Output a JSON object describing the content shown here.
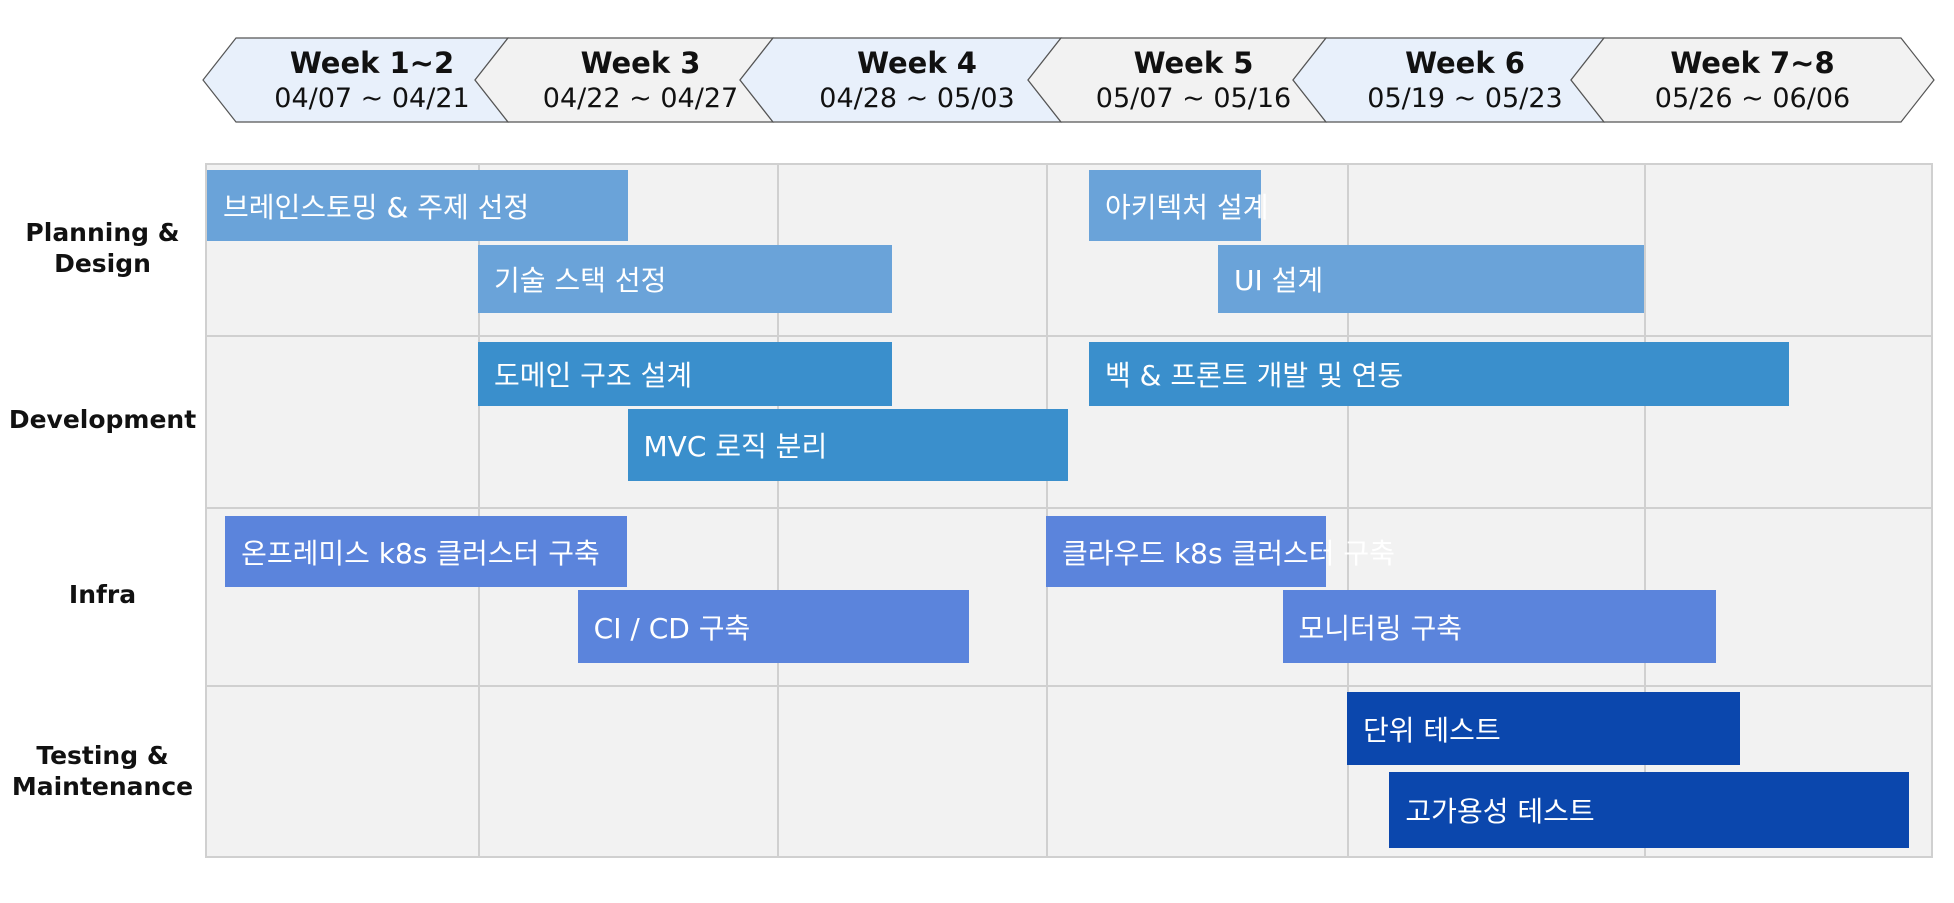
{
  "weeks": [
    {
      "name": "Week 1~2",
      "dates": "04/07 ~ 04/21"
    },
    {
      "name": "Week 3",
      "dates": "04/22 ~ 04/27"
    },
    {
      "name": "Week 4",
      "dates": "04/28 ~ 05/03"
    },
    {
      "name": "Week 5",
      "dates": "05/07 ~ 05/16"
    },
    {
      "name": "Week 6",
      "dates": "05/19 ~ 05/23"
    },
    {
      "name": "Week 7~8",
      "dates": "05/26 ~ 06/06"
    }
  ],
  "rows": [
    {
      "label": "Planning &\nDesign",
      "label_lines": [
        "Planning &",
        "Design"
      ],
      "color": "#6aa3d9"
    },
    {
      "label_lines": [
        "Development"
      ],
      "color": "#3a8fcc"
    },
    {
      "label_lines": [
        "Infra"
      ],
      "color": "#5b84dc"
    },
    {
      "label_lines": [
        "Testing &",
        "Maintenance"
      ],
      "color": "#0b47ad"
    }
  ],
  "tasks": [
    {
      "row": 0,
      "label": "브레인스토밍 & 주제 선정",
      "start": "04/07",
      "end": "04/25"
    },
    {
      "row": 0,
      "label": "기술 스택 선정",
      "start": "04/22",
      "end": "05/01"
    },
    {
      "row": 0,
      "label": "아키텍처 설계",
      "start": "05/07",
      "end": "05/15"
    },
    {
      "row": 0,
      "label": "UI 설계",
      "start": "05/13",
      "end": "05/26"
    },
    {
      "row": 1,
      "label": "도메인 구조 설계",
      "start": "04/22",
      "end": "05/01"
    },
    {
      "row": 1,
      "label": "MVC 로직 분리",
      "start": "04/25",
      "end": "05/06"
    },
    {
      "row": 1,
      "label": "백 & 프론트 개발 및 연동",
      "start": "05/07",
      "end": "06/01"
    },
    {
      "row": 2,
      "label": "온프레미스 k8s 클러스터 구축",
      "start": "04/08",
      "end": "04/25"
    },
    {
      "row": 2,
      "label": "CI / CD 구축",
      "start": "04/24",
      "end": "05/03"
    },
    {
      "row": 2,
      "label": "클라우드 k8s 클러스터 구축",
      "start": "05/05",
      "end": "05/18"
    },
    {
      "row": 2,
      "label": "모니터링 구축",
      "start": "05/16",
      "end": "05/29"
    },
    {
      "row": 3,
      "label": "단위 테스트",
      "start": "05/19",
      "end": "05/30"
    },
    {
      "row": 3,
      "label": "고가용성 테스트",
      "start": "05/20",
      "end": "06/06"
    }
  ]
}
